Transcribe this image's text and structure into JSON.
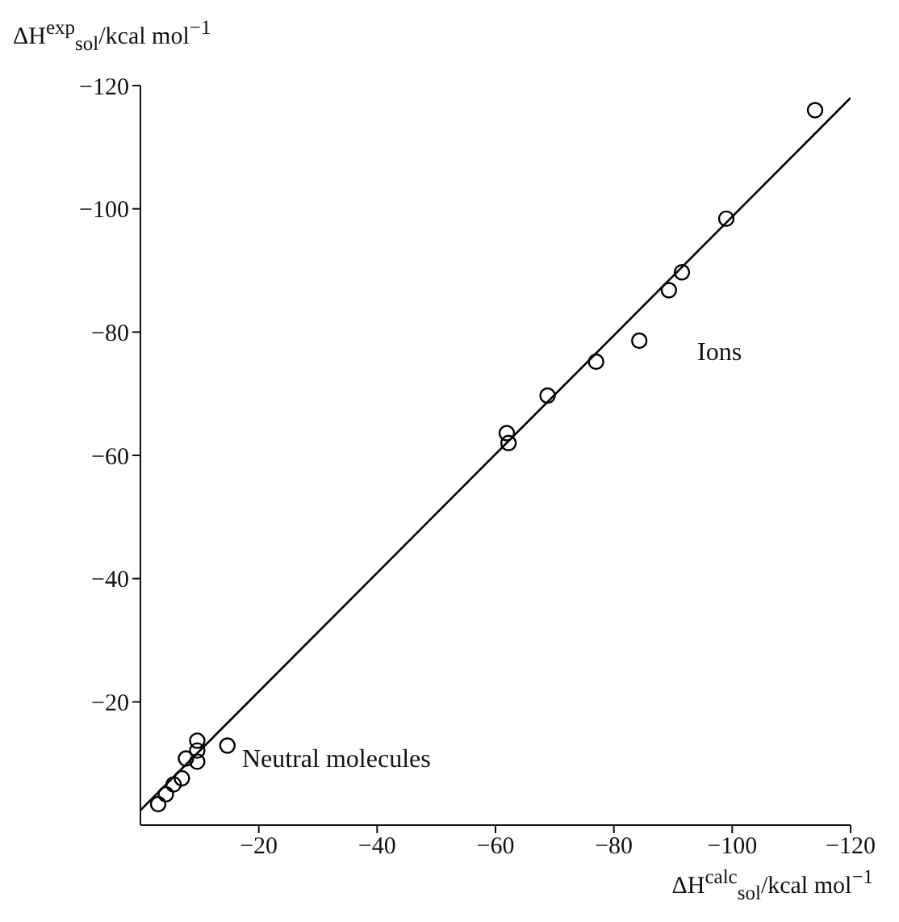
{
  "chart_data": {
    "type": "scatter",
    "xlabel": "ΔH$^{calc}$$_{sol}$/kcal mol$^{−1}$",
    "ylabel": "ΔH$^{exp}$$_{sol}$/kcal mol$^{−1}$",
    "xlim": [
      0,
      -120
    ],
    "ylim": [
      0,
      -120
    ],
    "xticks": [
      {
        "value": -20,
        "label": "−20"
      },
      {
        "value": -40,
        "label": "−40"
      },
      {
        "value": -60,
        "label": "−60"
      },
      {
        "value": -80,
        "label": "−80"
      },
      {
        "value": -100,
        "label": "−100"
      },
      {
        "value": -120,
        "label": "−120"
      }
    ],
    "yticks": [
      {
        "value": -20,
        "label": "−20"
      },
      {
        "value": -40,
        "label": "−40"
      },
      {
        "value": -60,
        "label": "−60"
      },
      {
        "value": -80,
        "label": "−80"
      },
      {
        "value": -100,
        "label": "−100"
      },
      {
        "value": -120,
        "label": "−120"
      }
    ],
    "marker": "circle",
    "grid": false,
    "legend": false,
    "series": [
      {
        "color": "#000000",
        "x": [
          -3,
          -4.3,
          -5.6,
          -7,
          -7.7,
          -9.6,
          -9.6,
          -9.6,
          -14.7,
          -61.9,
          -62.2,
          -68.8,
          -77,
          -84.3,
          -89.3,
          -91.5,
          -99,
          -114
        ],
        "values": [
          -3.4,
          -5,
          -6.6,
          -7.6,
          -10.8,
          -13.7,
          -12.1,
          -10.3,
          -12.9,
          -63.6,
          -62,
          -69.7,
          -75.2,
          -78.6,
          -86.8,
          -89.7,
          -98.4,
          -116
        ]
      },
      {
        "type": "line",
        "color": "#000000",
        "marker": "none",
        "x": [
          0,
          -120
        ],
        "values": [
          -2.4,
          -118
        ]
      }
    ],
    "annotations": [
      "Ions",
      "Neutral molecules"
    ]
  }
}
